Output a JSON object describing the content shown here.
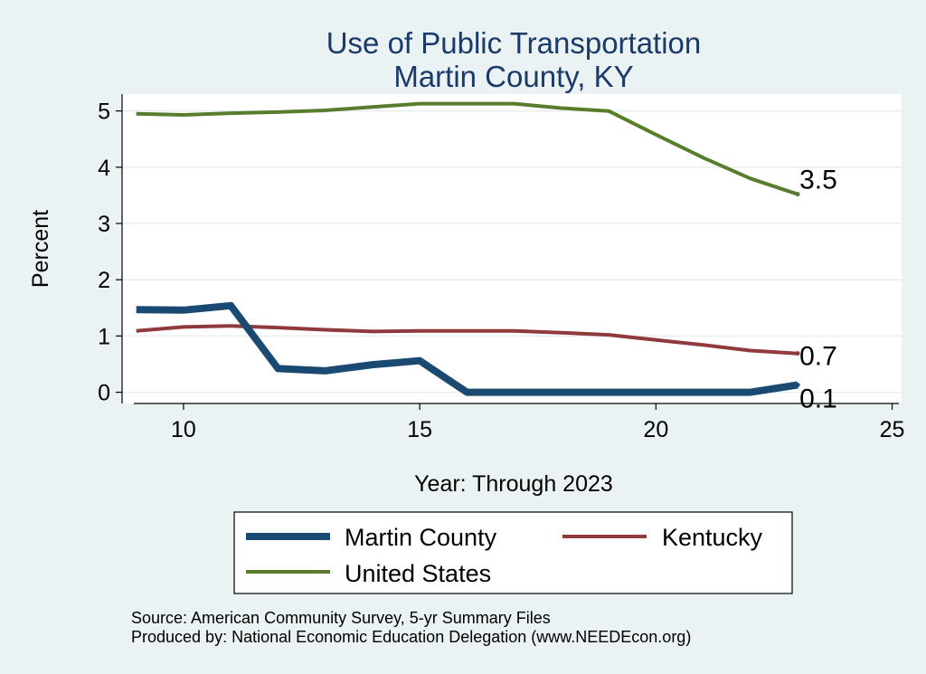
{
  "chart_data": {
    "type": "line",
    "title": "Use of Public Transportation",
    "subtitle": "Martin County, KY",
    "xlabel": "Year: Through 2023",
    "ylabel": "Percent",
    "xlim": [
      8.7,
      25.2
    ],
    "ylim": [
      -0.2,
      5.3
    ],
    "x_ticks": [
      10,
      15,
      20,
      25
    ],
    "y_ticks": [
      0,
      1,
      2,
      3,
      4,
      5
    ],
    "grid": true,
    "legend_position": "bottom",
    "series": [
      {
        "name": "Martin County",
        "color": "#1a4a72",
        "x": [
          9,
          10,
          11,
          12,
          13,
          14,
          15,
          16,
          17,
          18,
          19,
          20,
          21,
          22,
          23
        ],
        "y": [
          1.47,
          1.46,
          1.54,
          0.42,
          0.38,
          0.49,
          0.56,
          0.0,
          0.0,
          0.0,
          0.0,
          0.0,
          0.0,
          0.0,
          0.13
        ],
        "end_label": "0.1"
      },
      {
        "name": "Kentucky",
        "color": "#913a3e",
        "x": [
          9,
          10,
          11,
          12,
          13,
          14,
          15,
          16,
          17,
          18,
          19,
          20,
          21,
          22,
          23
        ],
        "y": [
          1.09,
          1.16,
          1.18,
          1.15,
          1.11,
          1.08,
          1.09,
          1.09,
          1.09,
          1.06,
          1.02,
          0.93,
          0.84,
          0.74,
          0.69
        ],
        "end_label": "0.7"
      },
      {
        "name": "United States",
        "color": "#5a7d2d",
        "x": [
          9,
          10,
          11,
          12,
          13,
          14,
          15,
          16,
          17,
          18,
          19,
          20,
          21,
          22,
          23
        ],
        "y": [
          4.95,
          4.93,
          4.96,
          4.98,
          5.01,
          5.07,
          5.13,
          5.13,
          5.13,
          5.05,
          5.0,
          4.58,
          4.17,
          3.8,
          3.52
        ],
        "end_label": "3.5"
      }
    ],
    "notes": [
      "Source: American Community Survey, 5-yr Summary Files",
      "Produced by: National Economic Education Delegation (www.NEEDEcon.org)"
    ]
  }
}
